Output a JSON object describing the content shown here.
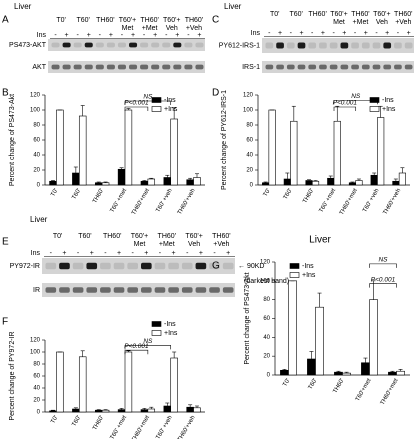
{
  "panels": [
    {
      "letter": "A",
      "tissue": "Liver",
      "headers": [
        [
          "T0'"
        ],
        [
          "T60'"
        ],
        [
          "TH60'"
        ],
        [
          "T60'+",
          "Met"
        ],
        [
          "TH60'",
          "+Met"
        ],
        [
          "T60'+",
          "Veh"
        ],
        [
          "TH60'",
          "+Veh"
        ]
      ],
      "ins_label": "Ins",
      "lanes": [
        "-",
        "+",
        "-",
        "+",
        "-",
        "+",
        "-",
        "+",
        "-",
        "+",
        "-",
        "+",
        "-",
        "+"
      ],
      "blots": [
        "PS473-AKT",
        "AKT"
      ]
    },
    {
      "letter": "C",
      "tissue": "Liver",
      "headers": [
        [
          "T0'"
        ],
        [
          "T60'"
        ],
        [
          "TH60'"
        ],
        [
          "T60'+",
          "Met"
        ],
        [
          "TH60'",
          "+Met"
        ],
        [
          "T60'+",
          "Veh"
        ],
        [
          "TH60'",
          "+Veh"
        ]
      ],
      "ins_label": "Ins",
      "lanes": [
        "-",
        "+",
        "-",
        "+",
        "-",
        "+",
        "-",
        "+",
        "-",
        "+",
        "-",
        "+",
        "-",
        "+"
      ],
      "blots": [
        "PY612-IRS-1",
        "IRS-1"
      ]
    },
    {
      "letter": "E",
      "tissue": "Liver",
      "headers": [
        [
          "T0'"
        ],
        [
          "T60'"
        ],
        [
          "TH60'"
        ],
        [
          "T60'+",
          "Met"
        ],
        [
          "TH60'",
          "+Met"
        ],
        [
          "T60'+",
          "Veh"
        ],
        [
          "TH60'",
          "+Veh"
        ]
      ],
      "ins_label": "Ins",
      "lanes": [
        "-",
        "+",
        "-",
        "+",
        "-",
        "+",
        "-",
        "+",
        "-",
        "+",
        "-",
        "+",
        "-",
        "+"
      ],
      "blots": [
        "PY972-IR",
        "IR"
      ],
      "marker": "← 90KD",
      "marker_note": "(darkest band)"
    }
  ],
  "chart_data": [
    {
      "type": "bar",
      "panel": "B",
      "ylabel": "Percent change of PS473-Akt",
      "categories": [
        "T0'",
        "T60'",
        "TH60'",
        "T60' +met",
        "TH60'+met",
        "T60' +veh",
        "TH60'+veh"
      ],
      "series": [
        {
          "name": "-Ins",
          "color": "#000000",
          "values": [
            5,
            16,
            3,
            21,
            5,
            10,
            7
          ],
          "errors": [
            1,
            8,
            1,
            2,
            1,
            3,
            2
          ]
        },
        {
          "name": "+Ins",
          "color": "#ffffff",
          "values": [
            100,
            92,
            3,
            100,
            8,
            88,
            10
          ],
          "errors": [
            0,
            14,
            1,
            2,
            1,
            15,
            5
          ]
        }
      ],
      "ylim": [
        0,
        120
      ],
      "yticks": [
        0,
        20,
        40,
        60,
        80,
        100,
        120
      ],
      "annotations": [
        "NS",
        "P<0.001"
      ]
    },
    {
      "type": "bar",
      "panel": "D",
      "ylabel": "Percent change of PY612-IRS-1",
      "categories": [
        "T0'",
        "T60'",
        "TH60'",
        "T60' +met",
        "TH60'+met",
        "T60' +veh",
        "TH60'+veh"
      ],
      "series": [
        {
          "name": "-Ins",
          "color": "#000000",
          "values": [
            3,
            8,
            6,
            9,
            3,
            13,
            5
          ],
          "errors": [
            1,
            8,
            1,
            3,
            1,
            3,
            3
          ]
        },
        {
          "name": "+Ins",
          "color": "#ffffff",
          "values": [
            100,
            85,
            5,
            85,
            6,
            90,
            16
          ],
          "errors": [
            0,
            20,
            1,
            20,
            2,
            15,
            7
          ]
        }
      ],
      "ylim": [
        0,
        120
      ],
      "yticks": [
        0,
        20,
        40,
        60,
        80,
        100,
        120
      ],
      "annotations": [
        "NS",
        "P<0.001"
      ]
    },
    {
      "type": "bar",
      "panel": "F",
      "ylabel": "Percent change of PY972-IR",
      "categories": [
        "T0'",
        "T60'",
        "TH60'",
        "T60' +met",
        "TH60'+met",
        "T60' +veh",
        "TH60'+veh"
      ],
      "series": [
        {
          "name": "-Ins",
          "color": "#000000",
          "values": [
            2,
            5,
            3,
            4,
            4,
            10,
            8
          ],
          "errors": [
            1,
            2,
            1,
            2,
            2,
            5,
            4
          ]
        },
        {
          "name": "+Ins",
          "color": "#ffffff",
          "values": [
            100,
            92,
            3,
            100,
            5,
            90,
            7
          ],
          "errors": [
            0,
            10,
            1,
            2,
            3,
            10,
            3
          ]
        }
      ],
      "ylim": [
        0,
        120
      ],
      "yticks": [
        0,
        20,
        40,
        60,
        80,
        100,
        120
      ],
      "annotations": [
        "NS",
        "P<0.001"
      ]
    },
    {
      "type": "bar",
      "panel": "G",
      "title": "Liver",
      "ylabel": "Percent change of PS473-Akt",
      "categories": [
        "T0'",
        "T60'",
        "TH60'",
        "T60'+met",
        "TH60'+met"
      ],
      "series": [
        {
          "name": "-Ins",
          "color": "#000000",
          "values": [
            5,
            17,
            3,
            13,
            3
          ],
          "errors": [
            1,
            8,
            1,
            5,
            1
          ]
        },
        {
          "name": "+Ins",
          "color": "#ffffff",
          "values": [
            100,
            72,
            2,
            80,
            4
          ],
          "errors": [
            0,
            15,
            1,
            20,
            2
          ]
        }
      ],
      "ylim": [
        0,
        120
      ],
      "yticks": [
        0,
        20,
        40,
        60,
        80,
        100,
        120
      ],
      "annotations": [
        "NS",
        "P<0.001"
      ]
    }
  ]
}
